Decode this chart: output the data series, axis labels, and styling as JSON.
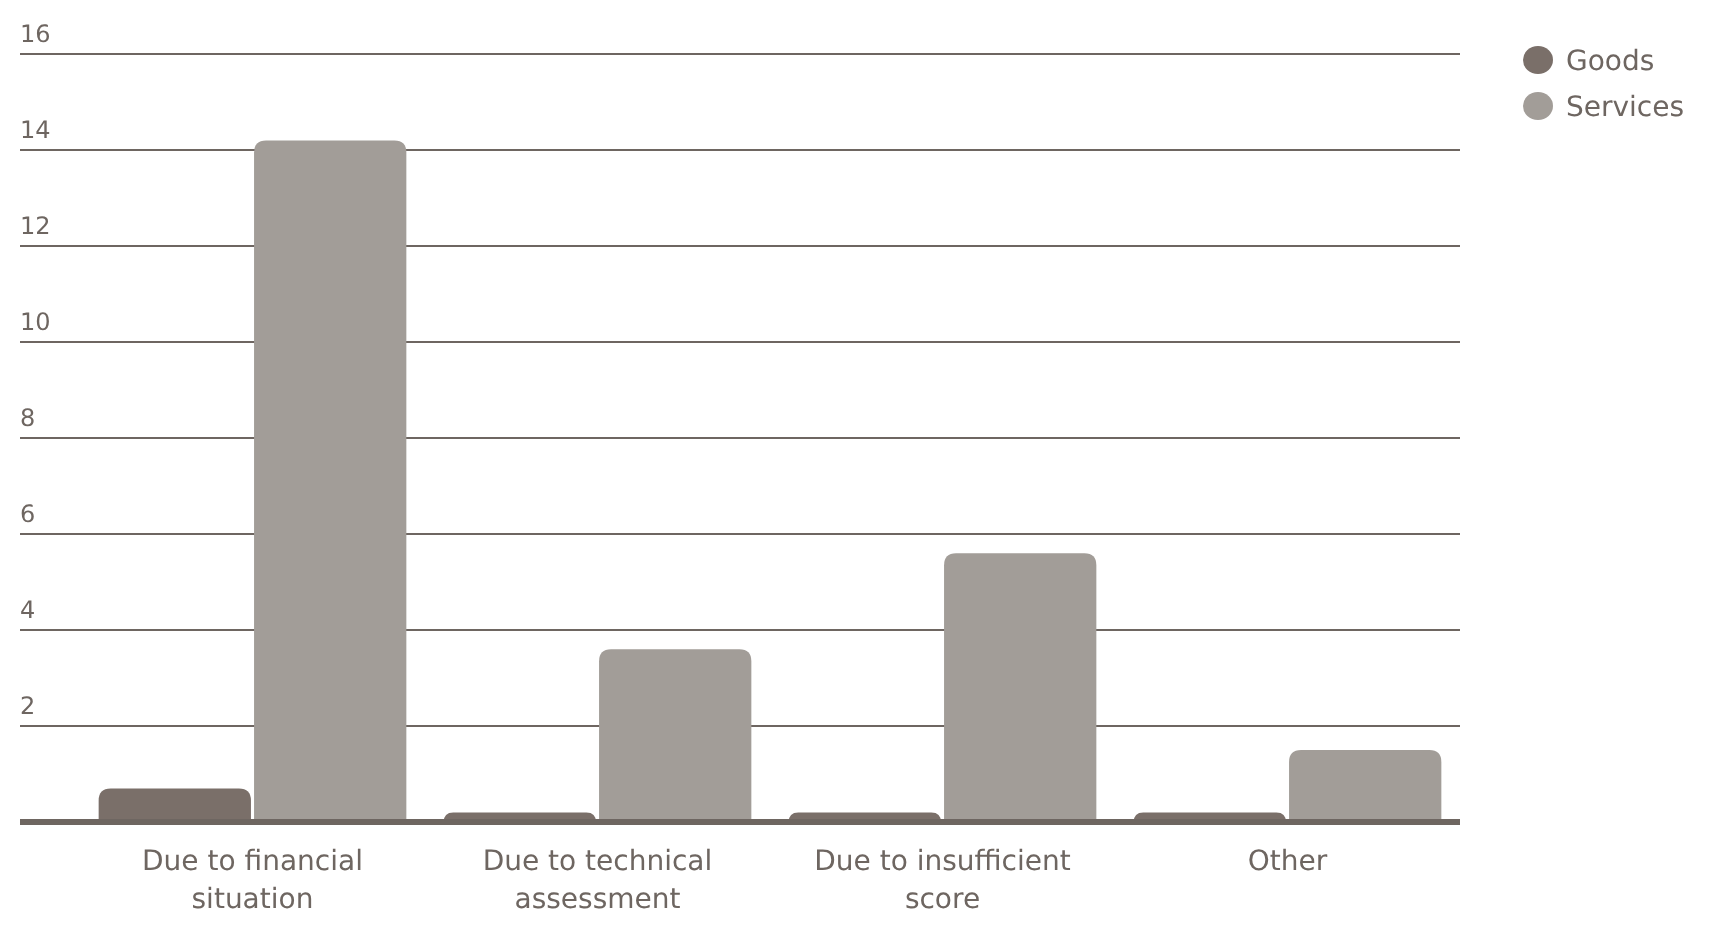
{
  "chart_data": {
    "type": "bar",
    "categories": [
      "Due to financial situation",
      "Due to technical assessment",
      "Due to insufficient score",
      "Other"
    ],
    "series": [
      {
        "name": "Goods",
        "color": "#7a6f69",
        "values": [
          0.7,
          0.2,
          0.2,
          0.2
        ]
      },
      {
        "name": "Services",
        "color": "#a29d98",
        "values": [
          14.2,
          3.6,
          5.6,
          1.5
        ]
      }
    ],
    "ylim": [
      0,
      16
    ],
    "yticks": [
      2,
      4,
      6,
      8,
      10,
      12,
      14,
      16
    ],
    "grid": "y",
    "legend": "top right"
  }
}
